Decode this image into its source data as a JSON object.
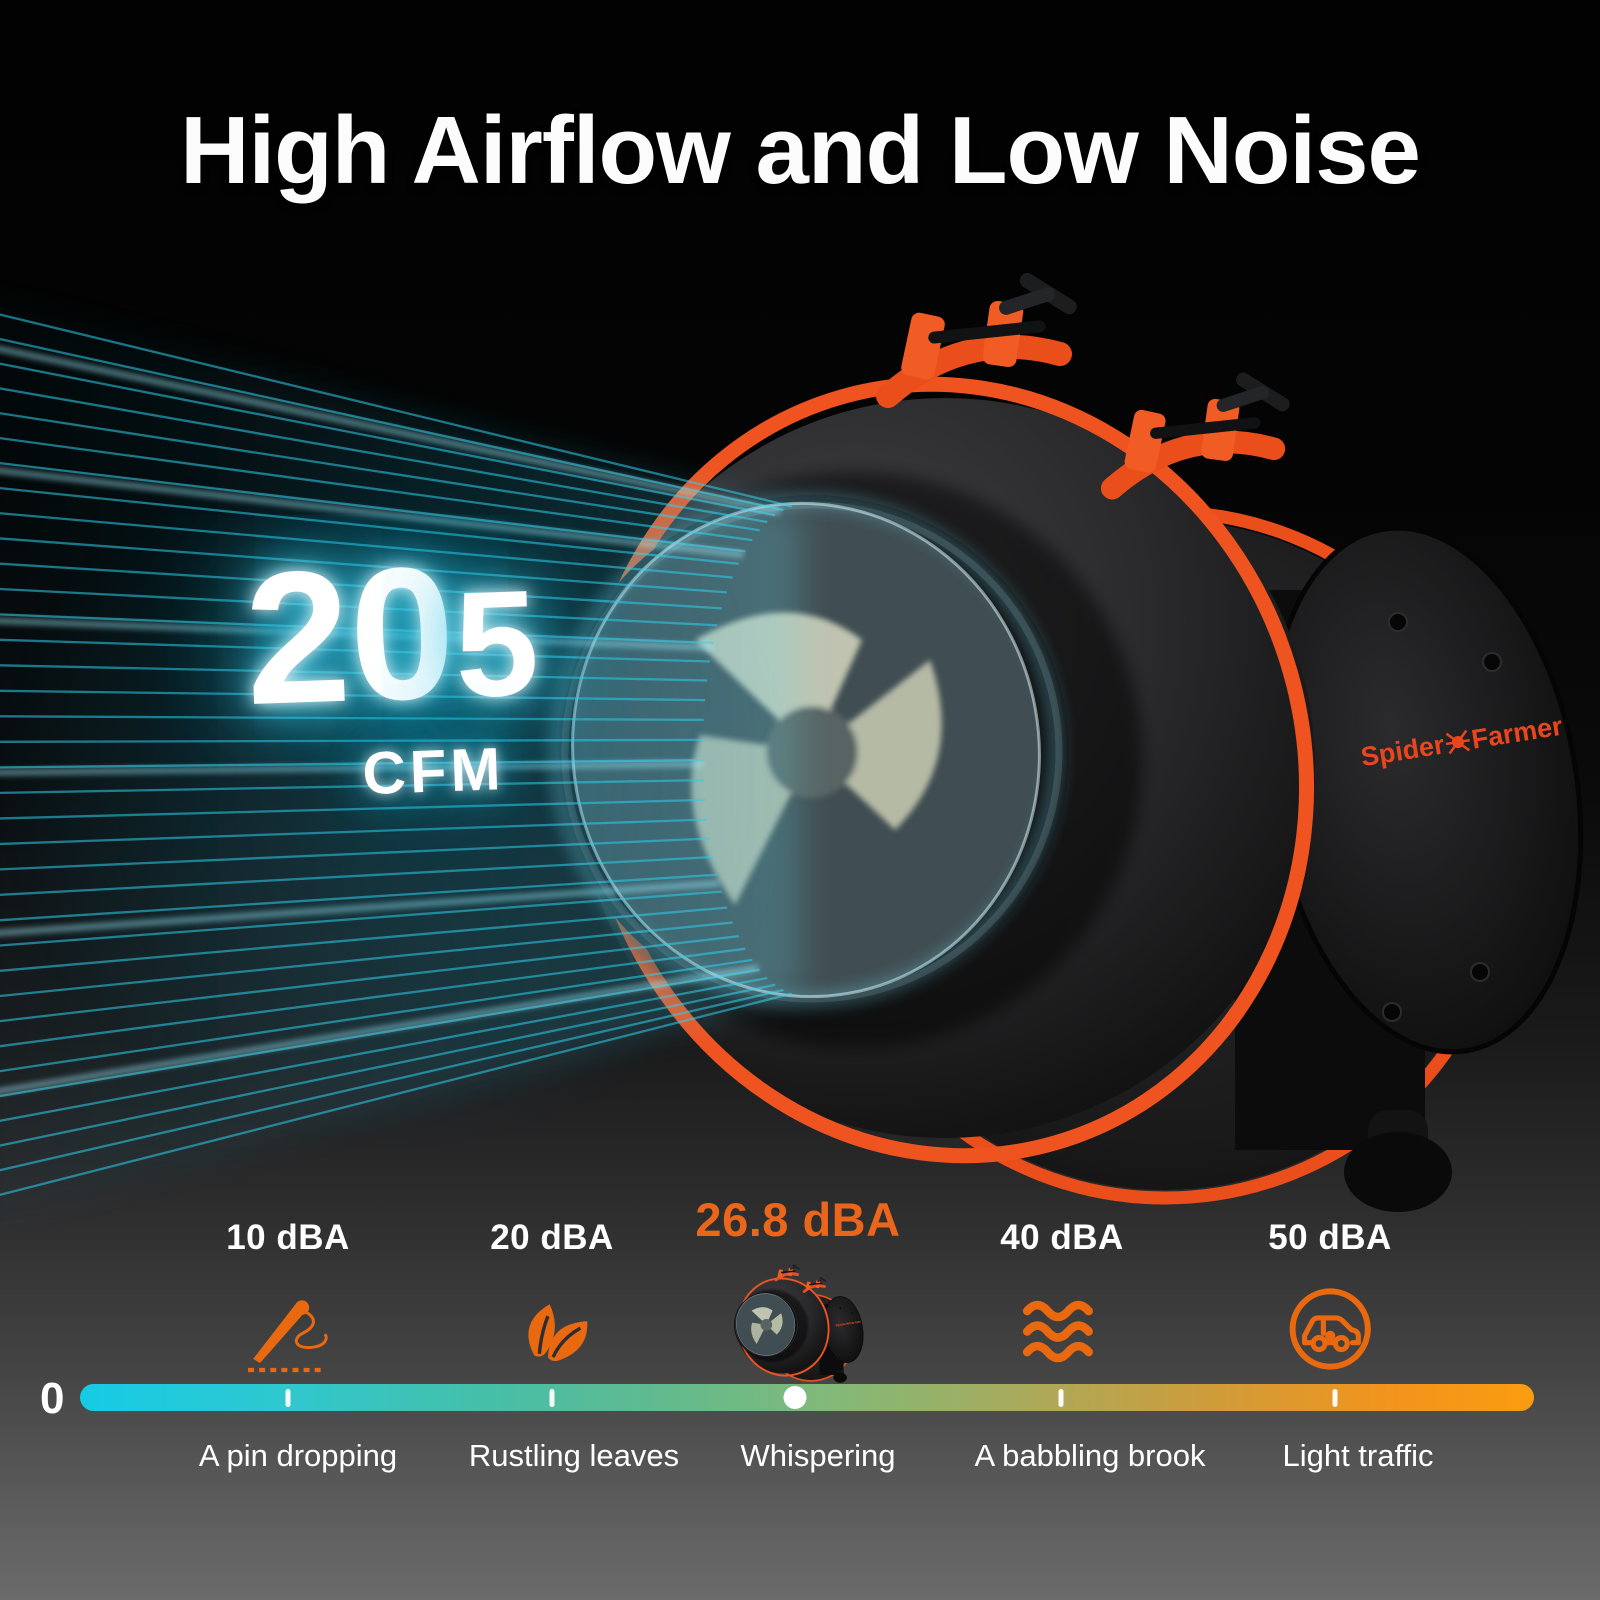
{
  "title": "High Airflow and Low Noise",
  "airflow": {
    "value": "205",
    "unit": "CFM"
  },
  "brand": {
    "word1": "Spider",
    "word2": "Farmer"
  },
  "noise_scale": {
    "origin": "0",
    "levels": [
      {
        "value": "10 dBA",
        "description": "A pin dropping",
        "icon": "needle-icon",
        "highlighted": false
      },
      {
        "value": "20 dBA",
        "description": "Rustling leaves",
        "icon": "leaf-icon",
        "highlighted": false
      },
      {
        "value": "26.8 dBA",
        "description": "Whispering",
        "icon": "product-fan-thumbnail",
        "highlighted": true
      },
      {
        "value": "40 dBA",
        "description": "A babbling brook",
        "icon": "waves-icon",
        "highlighted": false
      },
      {
        "value": "50 dBA",
        "description": "Light traffic",
        "icon": "car-icon",
        "highlighted": false
      }
    ]
  },
  "colors": {
    "accent_orange": "#E9661B",
    "icon_orange": "#E8690F",
    "clamp_orange": "#EF5420",
    "beam_cyan": "#2DD0EE",
    "bar_gradient_start": "#16CBE6",
    "bar_gradient_end": "#FB9C10",
    "background_top": "#020202",
    "background_bottom": "#6B6B6B"
  }
}
